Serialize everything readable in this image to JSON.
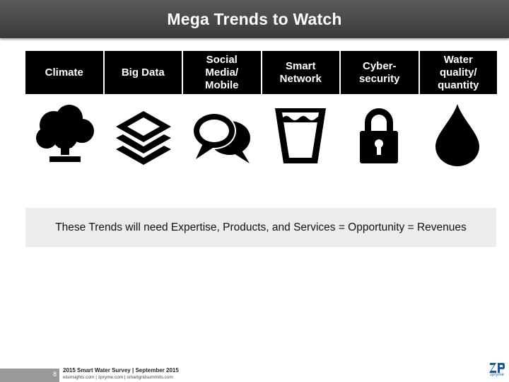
{
  "header": {
    "title": "Mega Trends to Watch"
  },
  "trends": [
    {
      "label": "Climate",
      "icon": "tree-icon"
    },
    {
      "label": "Big Data",
      "icon": "layers-icon"
    },
    {
      "label": "Social\nMedia/\nMobile",
      "icon": "chat-bubbles-icon"
    },
    {
      "label": "Smart\nNetwork",
      "icon": "water-glass-icon"
    },
    {
      "label": "Cyber-\nsecurity",
      "icon": "padlock-icon"
    },
    {
      "label": "Water\nquality/\nquantity",
      "icon": "water-drop-icon"
    }
  ],
  "banner": {
    "text": "These Trends will need Expertise, Products, and Services = Opportunity = Revenues"
  },
  "footer": {
    "page_number": "8",
    "title": "2015 Smart Water Survey | September 2015",
    "links": "elsinsights.com | zpryme.com | smartgridsummits.com",
    "logo_text": "zpryme"
  },
  "colors": {
    "title_bar": "#4a4a4a",
    "trend_header": "#000000",
    "banner_bg": "#ececec",
    "logo": "#1a5a9a"
  }
}
